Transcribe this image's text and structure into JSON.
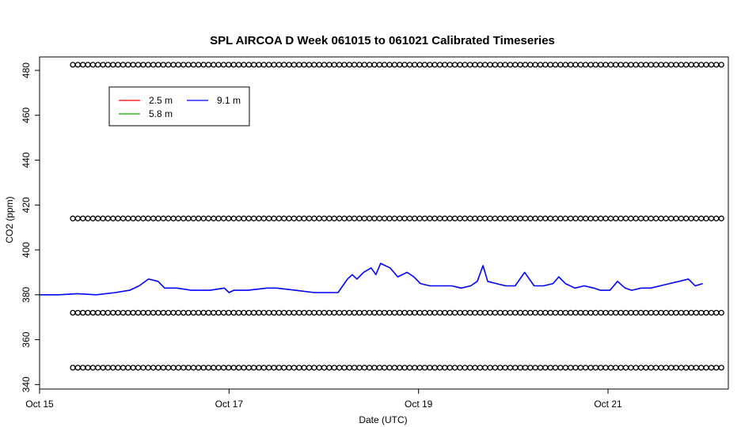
{
  "chart_data": {
    "type": "line",
    "title": "SPL AIRCOA D  Week 061015 to 061021  Calibrated Timeseries",
    "xlabel": "Date (UTC)",
    "ylabel": "CO2 (ppm)",
    "x_unit": "days",
    "xlim": [
      15.0,
      22.27
    ],
    "ylim": [
      338,
      486
    ],
    "x_ticks": [
      {
        "value": 15,
        "label": "Oct 15"
      },
      {
        "value": 17,
        "label": "Oct 17"
      },
      {
        "value": 19,
        "label": "Oct 19"
      },
      {
        "value": 21,
        "label": "Oct 21"
      }
    ],
    "y_ticks": [
      {
        "value": 340,
        "label": "340"
      },
      {
        "value": 360,
        "label": "360"
      },
      {
        "value": 380,
        "label": "380"
      },
      {
        "value": 400,
        "label": "400"
      },
      {
        "value": 420,
        "label": "420"
      },
      {
        "value": 440,
        "label": "440"
      },
      {
        "value": 460,
        "label": "460"
      },
      {
        "value": 480,
        "label": "480"
      }
    ],
    "legend": {
      "position": "top-left",
      "entries": [
        {
          "name": "2.5 m",
          "color": "#ff0000"
        },
        {
          "name": "5.8 m",
          "color": "#00aa00"
        },
        {
          "name": "9.1 m",
          "color": "#0000ff"
        }
      ]
    },
    "series": [
      {
        "name": "9.1 m",
        "color": "#0000ff",
        "points": [
          [
            15.0,
            380
          ],
          [
            15.2,
            380
          ],
          [
            15.4,
            380.5
          ],
          [
            15.6,
            380
          ],
          [
            15.8,
            381
          ],
          [
            15.95,
            382
          ],
          [
            16.05,
            384
          ],
          [
            16.15,
            387
          ],
          [
            16.25,
            386
          ],
          [
            16.32,
            383
          ],
          [
            16.45,
            383
          ],
          [
            16.6,
            382
          ],
          [
            16.8,
            382
          ],
          [
            16.95,
            383
          ],
          [
            17.0,
            381
          ],
          [
            17.05,
            382
          ],
          [
            17.2,
            382
          ],
          [
            17.4,
            383
          ],
          [
            17.5,
            383
          ],
          [
            17.7,
            382
          ],
          [
            17.9,
            381
          ],
          [
            18.05,
            381
          ],
          [
            18.15,
            381
          ],
          [
            18.2,
            384
          ],
          [
            18.25,
            387
          ],
          [
            18.3,
            389
          ],
          [
            18.35,
            387
          ],
          [
            18.42,
            390
          ],
          [
            18.5,
            392
          ],
          [
            18.55,
            389
          ],
          [
            18.6,
            394
          ],
          [
            18.7,
            392
          ],
          [
            18.78,
            388
          ],
          [
            18.88,
            390
          ],
          [
            18.95,
            388
          ],
          [
            19.02,
            385
          ],
          [
            19.12,
            384
          ],
          [
            19.25,
            384
          ],
          [
            19.35,
            384
          ],
          [
            19.45,
            383
          ],
          [
            19.55,
            384
          ],
          [
            19.62,
            386
          ],
          [
            19.68,
            393
          ],
          [
            19.73,
            386
          ],
          [
            19.82,
            385
          ],
          [
            19.92,
            384
          ],
          [
            20.02,
            384
          ],
          [
            20.12,
            390
          ],
          [
            20.22,
            384
          ],
          [
            20.32,
            384
          ],
          [
            20.42,
            385
          ],
          [
            20.48,
            388
          ],
          [
            20.55,
            385
          ],
          [
            20.65,
            383
          ],
          [
            20.75,
            384
          ],
          [
            20.85,
            383
          ],
          [
            20.92,
            382
          ],
          [
            21.02,
            382
          ],
          [
            21.1,
            386
          ],
          [
            21.18,
            383
          ],
          [
            21.25,
            382
          ],
          [
            21.35,
            383
          ],
          [
            21.45,
            383
          ],
          [
            21.55,
            384
          ],
          [
            21.65,
            385
          ],
          [
            21.75,
            386
          ],
          [
            21.85,
            387
          ],
          [
            21.92,
            384
          ],
          [
            22.0,
            385
          ]
        ]
      }
    ],
    "reference_levels": [
      {
        "value": 482.5,
        "marker": "open-circle"
      },
      {
        "value": 414,
        "marker": "open-circle"
      },
      {
        "value": 372,
        "marker": "open-circle"
      },
      {
        "value": 347.5,
        "marker": "open-circle"
      }
    ]
  }
}
